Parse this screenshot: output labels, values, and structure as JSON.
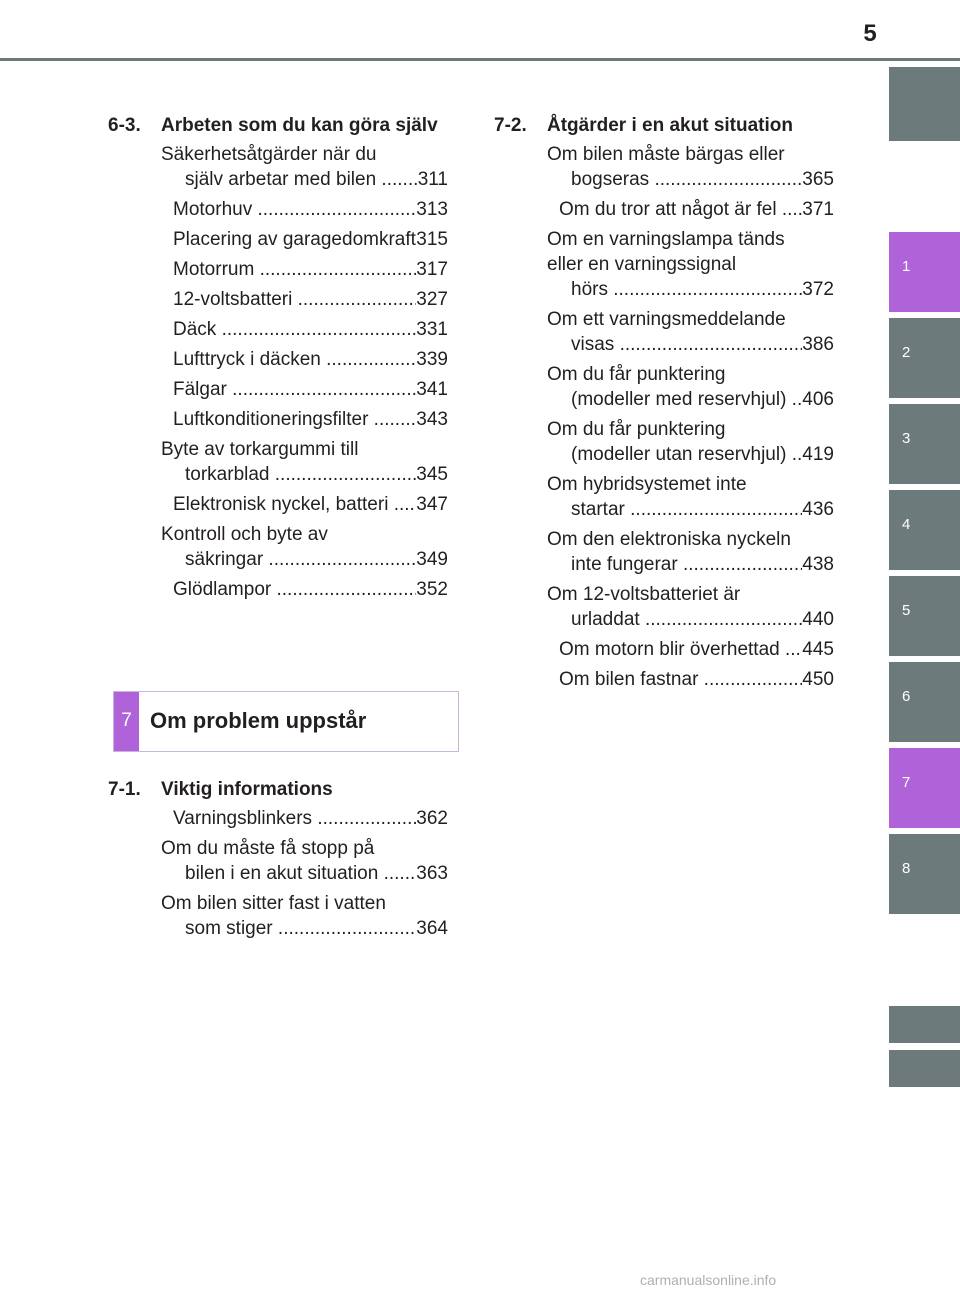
{
  "page_number": "5",
  "side_tabs": [
    {
      "label": "",
      "active": false
    },
    {
      "label": "1",
      "active": true
    },
    {
      "label": "2",
      "active": false
    },
    {
      "label": "3",
      "active": false
    },
    {
      "label": "4",
      "active": false
    },
    {
      "label": "5",
      "active": false
    },
    {
      "label": "6",
      "active": false
    },
    {
      "label": "7",
      "active": true
    },
    {
      "label": "8",
      "active": false
    },
    {
      "label": "",
      "active": false
    },
    {
      "label": "",
      "active": false
    }
  ],
  "left": {
    "section_6_3": {
      "num": "6-3.",
      "title": "Arbeten som du kan göra själv",
      "entries": [
        {
          "text": "Säkerhetsåtgärder när du själv arbetar med bilen",
          "page": "311"
        },
        {
          "text": "Motorhuv",
          "page": "313"
        },
        {
          "text": "Placering av garagedomkraft",
          "page": "315"
        },
        {
          "text": "Motorrum",
          "page": "317"
        },
        {
          "text": "12-voltsbatteri",
          "page": "327"
        },
        {
          "text": "Däck",
          "page": "331"
        },
        {
          "text": "Lufttryck i däcken",
          "page": "339"
        },
        {
          "text": "Fälgar",
          "page": "341"
        },
        {
          "text": "Luftkonditioneringsfilter",
          "page": "343"
        },
        {
          "text": "Byte av torkargummi till torkarblad",
          "page": "345"
        },
        {
          "text": "Elektronisk nyckel, batteri",
          "page": "347"
        },
        {
          "text": "Kontroll och byte av säkringar",
          "page": "349"
        },
        {
          "text": "Glödlampor",
          "page": "352"
        }
      ]
    },
    "chapter": {
      "num": "7",
      "title": "Om problem uppstår"
    },
    "section_7_1": {
      "num": "7-1.",
      "title": "Viktig informations",
      "entries": [
        {
          "text": "Varningsblinkers",
          "page": "362"
        },
        {
          "text": "Om du måste få stopp på bilen i en akut situation",
          "page": "363"
        },
        {
          "text": "Om bilen sitter fast i vatten som stiger",
          "page": "364"
        }
      ]
    }
  },
  "right": {
    "section_7_2": {
      "num": "7-2.",
      "title": "Åtgärder i en akut situation",
      "entries": [
        {
          "text": "Om bilen måste bärgas eller bogseras",
          "page": "365"
        },
        {
          "text": "Om du tror att något är fel",
          "page": "371"
        },
        {
          "text": "Om en varningslampa tänds eller en varningssignal hörs",
          "page": "372"
        },
        {
          "text": "Om ett varningsmeddelande visas",
          "page": "386"
        },
        {
          "text": "Om du får punktering (modeller med reservhjul)",
          "page": "406"
        },
        {
          "text": "Om du får punktering (modeller utan reservhjul)",
          "page": "419"
        },
        {
          "text": "Om hybridsystemet inte startar",
          "page": "436"
        },
        {
          "text": "Om den elektroniska nyckeln inte fungerar",
          "page": "438"
        },
        {
          "text": "Om 12-voltsbatteriet är urladdat",
          "page": "440"
        },
        {
          "text": "Om motorn blir överhettad",
          "page": "445"
        },
        {
          "text": "Om bilen fastnar",
          "page": "450"
        }
      ]
    }
  },
  "watermark": "carmanualsonline.info",
  "colors": {
    "tab_gray": "#6d7a7c",
    "tab_active": "#b063d8",
    "chapter_border": "#c9b3df"
  }
}
